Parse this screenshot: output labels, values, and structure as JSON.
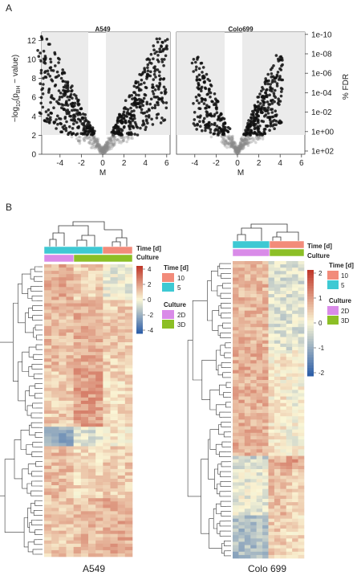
{
  "panel_a": {
    "letter": "A",
    "left_axis_label": "−log10(pBH − value)",
    "right_axis_label": "% FDR",
    "xlabel": "M",
    "left_ticks": [
      "0",
      "2",
      "4",
      "6",
      "8",
      "10",
      "12"
    ],
    "right_ticks": [
      "1e+02",
      "1e+00",
      "1e-02",
      "1e-04",
      "1e-06",
      "1e-08",
      "1e-10"
    ],
    "plots": [
      {
        "title": "A549",
        "x_ticks": [
          "-4",
          "-2",
          "0",
          "2",
          "4",
          "6"
        ]
      },
      {
        "title": "Colo699",
        "x_ticks": [
          "-4",
          "-2",
          "0",
          "2",
          "4",
          "6"
        ]
      }
    ]
  },
  "panel_b": {
    "letter": "B",
    "heatmaps": [
      {
        "label": "A549",
        "annotation_time_label": "Time [d]",
        "annotation_culture_label": "Culture",
        "scale_ticks": [
          "4",
          "2",
          "0",
          "-2",
          "-4"
        ],
        "legend_time_title": "Time [d]",
        "legend_time_items": [
          "10",
          "5"
        ],
        "legend_culture_title": "Culture",
        "legend_culture_items": [
          "2D",
          "3D"
        ]
      },
      {
        "label": "Colo 699",
        "annotation_time_label": "Time [d]",
        "annotation_culture_label": "Culture",
        "scale_ticks": [
          "2",
          "1",
          "0",
          "-1",
          "-2"
        ],
        "legend_time_title": "Time [d]",
        "legend_time_items": [
          "10",
          "5"
        ],
        "legend_culture_title": "Culture",
        "legend_culture_items": [
          "2D",
          "3D"
        ]
      }
    ]
  },
  "colors": {
    "time_10": "#f28b7a",
    "time_5": "#3ec9d3",
    "culture_2D": "#d98be8",
    "culture_3D": "#8cbf26",
    "heat_high": "#c0392b",
    "heat_mid": "#fbf7d6",
    "heat_low": "#2e5fa8",
    "shade": "#ebebeb"
  }
}
